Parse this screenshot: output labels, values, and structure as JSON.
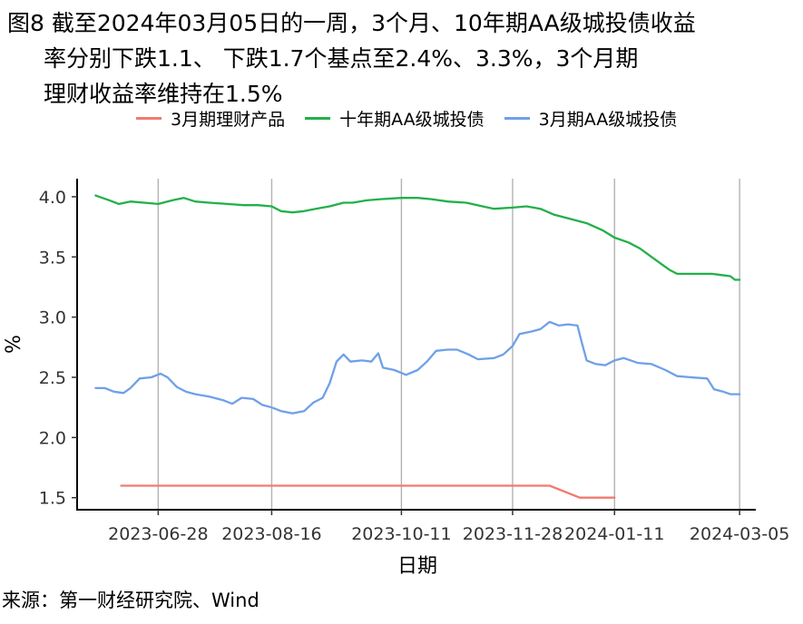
{
  "title": {
    "line1": "图8  截至2024年03月05日的一周，3个月、10年期AA级城投债收益",
    "line2": "率分别下跌1.1、 下跌1.7个基点至2.4%、3.3%，3个月期",
    "line3": "理财收益率维持在1.5%"
  },
  "source": "来源：第一财经研究院、Wind",
  "chart_data": {
    "type": "line",
    "xlabel": "日期",
    "ylabel": "%",
    "ylim": [
      1.4,
      4.15
    ],
    "yticks": [
      "1.5",
      "2.0",
      "2.5",
      "3.0",
      "3.5",
      "4.0"
    ],
    "xlim": [
      "2023-05-24",
      "2024-03-12"
    ],
    "xticks": [
      "2023-06-28",
      "2023-08-16",
      "2023-10-11",
      "2023-11-28",
      "2024-01-11",
      "2024-03-05"
    ],
    "grid": "vertical",
    "legend_position": "top",
    "series": [
      {
        "name": "3月期理财产品",
        "color": "#f07b72",
        "points": [
          [
            "2023-06-12",
            1.6
          ],
          [
            "2023-08-16",
            1.6
          ],
          [
            "2023-10-11",
            1.6
          ],
          [
            "2023-11-28",
            1.6
          ],
          [
            "2023-12-14",
            1.6
          ],
          [
            "2023-12-27",
            1.5
          ],
          [
            "2024-01-11",
            1.5
          ]
        ]
      },
      {
        "name": "十年期AA级城投债",
        "color": "#22b04a",
        "points": [
          [
            "2023-06-01",
            4.01
          ],
          [
            "2023-06-07",
            3.97
          ],
          [
            "2023-06-11",
            3.94
          ],
          [
            "2023-06-16",
            3.96
          ],
          [
            "2023-06-22",
            3.95
          ],
          [
            "2023-06-28",
            3.94
          ],
          [
            "2023-07-04",
            3.97
          ],
          [
            "2023-07-09",
            3.99
          ],
          [
            "2023-07-14",
            3.96
          ],
          [
            "2023-07-20",
            3.95
          ],
          [
            "2023-07-28",
            3.94
          ],
          [
            "2023-08-04",
            3.93
          ],
          [
            "2023-08-10",
            3.93
          ],
          [
            "2023-08-16",
            3.92
          ],
          [
            "2023-08-20",
            3.88
          ],
          [
            "2023-08-25",
            3.87
          ],
          [
            "2023-08-30",
            3.88
          ],
          [
            "2023-09-04",
            3.9
          ],
          [
            "2023-09-10",
            3.92
          ],
          [
            "2023-09-16",
            3.95
          ],
          [
            "2023-09-20",
            3.95
          ],
          [
            "2023-09-26",
            3.97
          ],
          [
            "2023-10-02",
            3.98
          ],
          [
            "2023-10-11",
            3.99
          ],
          [
            "2023-10-18",
            3.99
          ],
          [
            "2023-10-24",
            3.98
          ],
          [
            "2023-10-31",
            3.96
          ],
          [
            "2023-11-08",
            3.95
          ],
          [
            "2023-11-15",
            3.92
          ],
          [
            "2023-11-20",
            3.9
          ],
          [
            "2023-11-28",
            3.91
          ],
          [
            "2023-12-04",
            3.92
          ],
          [
            "2023-12-10",
            3.9
          ],
          [
            "2023-12-16",
            3.85
          ],
          [
            "2023-12-22",
            3.82
          ],
          [
            "2023-12-30",
            3.78
          ],
          [
            "2024-01-06",
            3.72
          ],
          [
            "2024-01-11",
            3.66
          ],
          [
            "2024-01-17",
            3.62
          ],
          [
            "2024-01-22",
            3.57
          ],
          [
            "2024-01-27",
            3.5
          ],
          [
            "2024-02-01",
            3.43
          ],
          [
            "2024-02-04",
            3.39
          ],
          [
            "2024-02-07",
            3.36
          ],
          [
            "2024-02-15",
            3.36
          ],
          [
            "2024-02-22",
            3.36
          ],
          [
            "2024-02-26",
            3.35
          ],
          [
            "2024-03-01",
            3.34
          ],
          [
            "2024-03-03",
            3.31
          ],
          [
            "2024-03-05",
            3.31
          ]
        ]
      },
      {
        "name": "3月期AA级城投债",
        "color": "#6fa0e8",
        "points": [
          [
            "2023-06-01",
            2.41
          ],
          [
            "2023-06-05",
            2.41
          ],
          [
            "2023-06-09",
            2.38
          ],
          [
            "2023-06-13",
            2.37
          ],
          [
            "2023-06-16",
            2.41
          ],
          [
            "2023-06-20",
            2.49
          ],
          [
            "2023-06-25",
            2.5
          ],
          [
            "2023-06-29",
            2.53
          ],
          [
            "2023-07-02",
            2.5
          ],
          [
            "2023-07-06",
            2.42
          ],
          [
            "2023-07-10",
            2.38
          ],
          [
            "2023-07-14",
            2.36
          ],
          [
            "2023-07-20",
            2.34
          ],
          [
            "2023-07-26",
            2.31
          ],
          [
            "2023-07-30",
            2.28
          ],
          [
            "2023-08-03",
            2.33
          ],
          [
            "2023-08-08",
            2.32
          ],
          [
            "2023-08-12",
            2.27
          ],
          [
            "2023-08-16",
            2.25
          ],
          [
            "2023-08-20",
            2.22
          ],
          [
            "2023-08-25",
            2.2
          ],
          [
            "2023-08-30",
            2.22
          ],
          [
            "2023-09-03",
            2.29
          ],
          [
            "2023-09-07",
            2.33
          ],
          [
            "2023-09-10",
            2.45
          ],
          [
            "2023-09-13",
            2.63
          ],
          [
            "2023-09-16",
            2.69
          ],
          [
            "2023-09-19",
            2.63
          ],
          [
            "2023-09-24",
            2.64
          ],
          [
            "2023-09-28",
            2.63
          ],
          [
            "2023-10-01",
            2.7
          ],
          [
            "2023-10-03",
            2.58
          ],
          [
            "2023-10-08",
            2.56
          ],
          [
            "2023-10-13",
            2.52
          ],
          [
            "2023-10-18",
            2.56
          ],
          [
            "2023-10-22",
            2.63
          ],
          [
            "2023-10-26",
            2.72
          ],
          [
            "2023-10-31",
            2.73
          ],
          [
            "2023-11-04",
            2.73
          ],
          [
            "2023-11-09",
            2.69
          ],
          [
            "2023-11-13",
            2.65
          ],
          [
            "2023-11-20",
            2.66
          ],
          [
            "2023-11-24",
            2.69
          ],
          [
            "2023-11-28",
            2.76
          ],
          [
            "2023-12-01",
            2.86
          ],
          [
            "2023-12-06",
            2.88
          ],
          [
            "2023-12-10",
            2.9
          ],
          [
            "2023-12-14",
            2.96
          ],
          [
            "2023-12-18",
            2.93
          ],
          [
            "2023-12-22",
            2.94
          ],
          [
            "2023-12-26",
            2.93
          ],
          [
            "2023-12-28",
            2.78
          ],
          [
            "2023-12-30",
            2.64
          ],
          [
            "2024-01-03",
            2.61
          ],
          [
            "2024-01-07",
            2.6
          ],
          [
            "2024-01-11",
            2.64
          ],
          [
            "2024-01-15",
            2.66
          ],
          [
            "2024-01-21",
            2.62
          ],
          [
            "2024-01-27",
            2.61
          ],
          [
            "2024-02-02",
            2.56
          ],
          [
            "2024-02-07",
            2.51
          ],
          [
            "2024-02-13",
            2.5
          ],
          [
            "2024-02-20",
            2.49
          ],
          [
            "2024-02-23",
            2.4
          ],
          [
            "2024-02-27",
            2.38
          ],
          [
            "2024-03-01",
            2.36
          ],
          [
            "2024-03-05",
            2.36
          ]
        ]
      }
    ]
  }
}
